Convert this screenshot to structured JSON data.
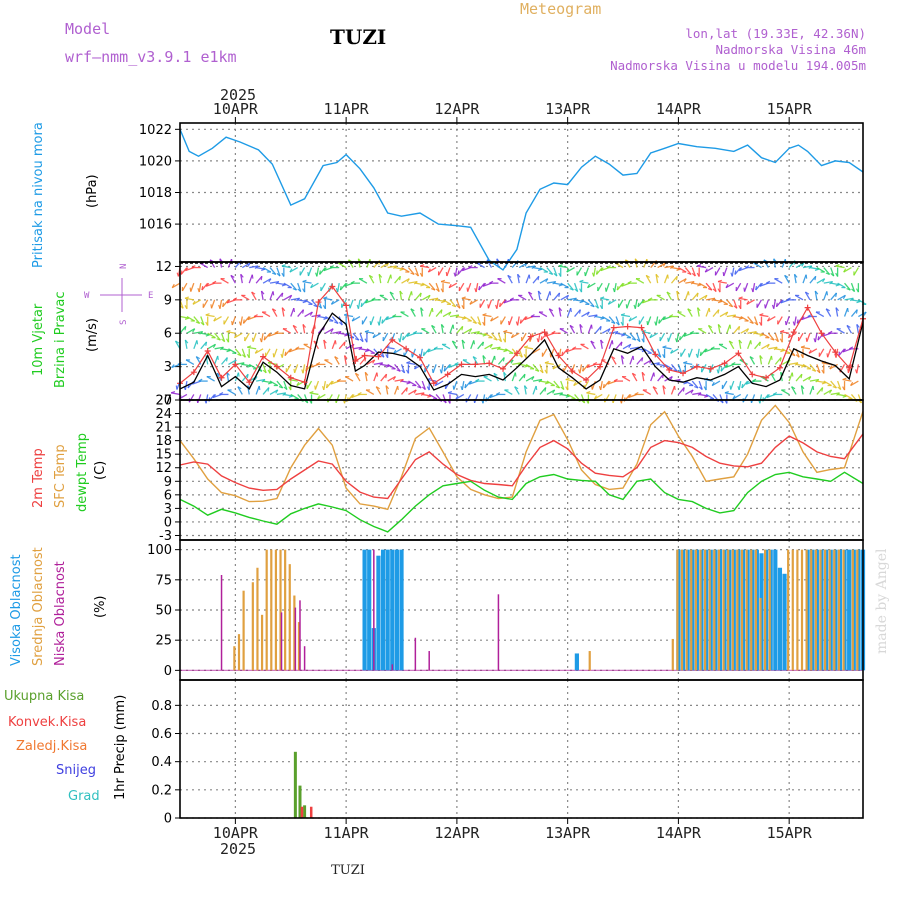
{
  "header": {
    "model_label": "Model",
    "model_name": "wrf—nmm_v3.9.1  e1km",
    "station": "TUZI",
    "product": "Meteogram",
    "coords": "lon,lat (19.33E, 42.36N)",
    "elevation": "Nadmorska Visina 46m",
    "model_elevation": "Nadmorska Visina u modelu 194.005m",
    "watermark": "made by Angel",
    "footer_station": "TUZI"
  },
  "colors": {
    "pressure": "#1e9be6",
    "t2m": "#ee4040",
    "tsfc": "#e0a040",
    "dewpt": "#20cc20",
    "high_cloud": "#1e9be6",
    "mid_cloud": "#e0a040",
    "low_cloud": "#b0209a",
    "total_precip": "#5aa02c",
    "conv_precip": "#ee4040",
    "frz_precip": "#f07830",
    "snow": "#4040e0",
    "hail": "#30c0c0",
    "wind_speed": "#000000",
    "wind_gust": "#ee4040"
  },
  "xaxis": {
    "top_year": "2025",
    "bottom_year": "2025",
    "day_labels": [
      "10APR",
      "11APR",
      "12APR",
      "13APR",
      "14APR",
      "15APR"
    ],
    "day_offsets_h": [
      12,
      36,
      60,
      84,
      108,
      132
    ],
    "range_h": [
      0,
      148
    ]
  },
  "panels": {
    "pressure": {
      "label": "Pritisak na nivou mora",
      "unit": "(hPa)",
      "ylim": [
        1013.6,
        1022.4
      ],
      "ticks": [
        "1016",
        "1018",
        "1020",
        "1022"
      ]
    },
    "wind": {
      "label1": "10m Vjetar",
      "label2": "Brzina i Pravac",
      "unit": "(m/s)",
      "compass": {
        "n": "N",
        "s": "S",
        "e": "E",
        "w": "W"
      },
      "ylim": [
        0,
        12.4
      ],
      "ticks": [
        "0",
        "3",
        "6",
        "9",
        "12"
      ]
    },
    "temp": {
      "label1": "2m Temp",
      "label2": "SFC Temp",
      "label3": "dewpt Temp",
      "unit": "(C)",
      "ylim": [
        -4,
        27
      ],
      "ticks": [
        "-3",
        "0",
        "3",
        "6",
        "9",
        "12",
        "15",
        "18",
        "21",
        "24",
        "27"
      ]
    },
    "cloud": {
      "label1": "Visoka Oblacnost",
      "label2": "Srednja Oblacnost",
      "label3": "Niska Oblacnost",
      "unit": "(%)",
      "ylim": [
        -8,
        108
      ],
      "ticks": [
        "0",
        "25",
        "50",
        "75",
        "100"
      ]
    },
    "precip": {
      "labels": [
        "Ukupna  Kisa",
        "Konvek.Kisa",
        "Zaledj.Kisa",
        "Snijeg",
        "Grad"
      ],
      "unit": "1hr Precip (mm)",
      "ylim": [
        0,
        0.98
      ],
      "ticks": [
        "0",
        "0.2",
        "0.4",
        "0.6",
        "0.8"
      ]
    }
  },
  "chart_data": {
    "type": "line",
    "x_unit": "hours from 2025-04-10 00UTC",
    "pressure_series": {
      "x": [
        0,
        2,
        4,
        7,
        10,
        13,
        17,
        20,
        24,
        27,
        31,
        34,
        36,
        39,
        42,
        45,
        48,
        52,
        56,
        60,
        63,
        67,
        70,
        73,
        75,
        78,
        81,
        84,
        87,
        90,
        93,
        96,
        99,
        102,
        105,
        108,
        112,
        116,
        120,
        123,
        126,
        129,
        132,
        134,
        136,
        139,
        142,
        145,
        148
      ],
      "values": [
        1022.0,
        1020.6,
        1020.3,
        1020.8,
        1021.5,
        1021.2,
        1020.7,
        1019.8,
        1017.2,
        1017.6,
        1019.7,
        1019.9,
        1020.4,
        1019.5,
        1018.3,
        1016.7,
        1016.5,
        1016.7,
        1016.0,
        1015.9,
        1015.8,
        1013.7,
        1013.1,
        1014.4,
        1016.7,
        1018.2,
        1018.6,
        1018.5,
        1019.6,
        1020.3,
        1019.8,
        1019.1,
        1019.2,
        1020.5,
        1020.8,
        1021.1,
        1020.9,
        1020.8,
        1020.6,
        1021.0,
        1020.2,
        1019.9,
        1020.8,
        1021.0,
        1020.6,
        1019.7,
        1020.0,
        1019.9,
        1019.3
      ]
    },
    "wind_speed_series": {
      "x": [
        0,
        3,
        6,
        9,
        12,
        15,
        18,
        21,
        24,
        27,
        30,
        33,
        36,
        38,
        40,
        43,
        46,
        49,
        52,
        55,
        58,
        61,
        64,
        67,
        70,
        73,
        76,
        79,
        82,
        85,
        88,
        91,
        94,
        97,
        100,
        103,
        106,
        109,
        112,
        115,
        118,
        121,
        124,
        127,
        130,
        133,
        136,
        139,
        142,
        145,
        148
      ],
      "values": [
        1.0,
        1.6,
        4.0,
        1.2,
        2.1,
        1.0,
        3.4,
        2.5,
        1.3,
        1.0,
        5.8,
        7.8,
        6.8,
        2.6,
        3.1,
        4.3,
        4.2,
        3.9,
        3.0,
        0.9,
        1.4,
        2.3,
        2.1,
        2.3,
        1.8,
        2.9,
        4.1,
        5.4,
        2.9,
        2.0,
        1.0,
        1.8,
        4.6,
        4.2,
        4.8,
        3.0,
        1.8,
        1.6,
        2.0,
        1.8,
        2.3,
        3.0,
        1.5,
        1.2,
        1.8,
        4.6,
        4.0,
        3.5,
        3.1,
        1.9,
        7.0
      ]
    },
    "wind_gust_series": {
      "x": [
        0,
        3,
        6,
        9,
        12,
        15,
        18,
        21,
        24,
        27,
        30,
        33,
        36,
        38,
        40,
        43,
        46,
        49,
        52,
        55,
        58,
        61,
        64,
        67,
        70,
        73,
        76,
        79,
        82,
        85,
        88,
        91,
        94,
        97,
        100,
        103,
        106,
        109,
        112,
        115,
        118,
        121,
        124,
        127,
        130,
        133,
        136,
        139,
        142,
        145,
        148
      ],
      "values": [
        1.5,
        2.5,
        4.4,
        2.0,
        3.2,
        1.6,
        3.9,
        3.0,
        2.0,
        1.6,
        8.8,
        10.2,
        8.5,
        3.5,
        4.0,
        3.9,
        5.4,
        4.6,
        3.8,
        1.5,
        2.3,
        3.2,
        3.2,
        3.3,
        2.8,
        4.2,
        5.7,
        6.1,
        4.0,
        2.6,
        1.8,
        3.0,
        6.5,
        6.6,
        6.5,
        4.1,
        2.7,
        2.4,
        3.0,
        2.8,
        3.3,
        4.2,
        2.3,
        2.0,
        2.9,
        6.1,
        8.3,
        6.0,
        4.3,
        2.9,
        7.3
      ]
    },
    "t2m_series": {
      "x": [
        0,
        3,
        6,
        9,
        12,
        15,
        18,
        21,
        24,
        27,
        30,
        33,
        36,
        39,
        42,
        45,
        48,
        51,
        54,
        57,
        60,
        63,
        66,
        69,
        72,
        75,
        78,
        81,
        84,
        87,
        90,
        93,
        96,
        99,
        102,
        105,
        108,
        111,
        114,
        117,
        120,
        123,
        126,
        129,
        132,
        135,
        138,
        141,
        144,
        148
      ],
      "values": [
        12.6,
        13.3,
        12.8,
        10.2,
        8.7,
        7.5,
        7.0,
        7.2,
        9.5,
        11.5,
        13.5,
        12.8,
        9.0,
        6.6,
        5.5,
        5.2,
        9.5,
        13.8,
        15.5,
        12.8,
        10.5,
        9.2,
        8.5,
        8.3,
        8.0,
        12.5,
        16.5,
        18.0,
        16.2,
        13.0,
        10.8,
        10.3,
        10.0,
        12.0,
        16.5,
        18.0,
        17.6,
        16.5,
        14.5,
        13.0,
        12.4,
        12.2,
        13.0,
        16.5,
        19.0,
        17.5,
        15.5,
        14.5,
        14.0,
        19.5
      ]
    },
    "tsfc_series": {
      "x": [
        0,
        3,
        6,
        9,
        12,
        15,
        18,
        21,
        24,
        27,
        30,
        33,
        36,
        39,
        42,
        45,
        48,
        51,
        54,
        57,
        60,
        63,
        66,
        69,
        72,
        75,
        78,
        81,
        84,
        87,
        90,
        93,
        96,
        99,
        102,
        105,
        108,
        111,
        114,
        117,
        120,
        123,
        126,
        129,
        132,
        135,
        138,
        141,
        144,
        148
      ],
      "values": [
        18.0,
        14.0,
        9.5,
        6.5,
        5.8,
        4.5,
        4.6,
        5.2,
        12.0,
        17.0,
        20.7,
        17.0,
        7.5,
        4.0,
        3.5,
        2.8,
        10.0,
        18.5,
        20.8,
        15.5,
        10.0,
        7.2,
        6.0,
        5.2,
        5.5,
        15.5,
        22.5,
        23.8,
        18.2,
        11.5,
        8.3,
        7.2,
        7.5,
        12.8,
        21.5,
        24.4,
        19.0,
        14.5,
        9.0,
        9.5,
        10.0,
        15.0,
        22.5,
        25.8,
        22.0,
        15.5,
        11.0,
        11.6,
        12.0,
        24.5
      ]
    },
    "dewpt_series": {
      "x": [
        0,
        3,
        6,
        9,
        12,
        15,
        18,
        21,
        24,
        27,
        30,
        33,
        36,
        39,
        42,
        45,
        48,
        51,
        54,
        57,
        60,
        63,
        66,
        69,
        72,
        75,
        78,
        81,
        84,
        87,
        90,
        93,
        96,
        99,
        102,
        105,
        108,
        111,
        114,
        117,
        120,
        123,
        126,
        129,
        132,
        135,
        138,
        141,
        144,
        148
      ],
      "values": [
        5.0,
        3.5,
        1.5,
        2.8,
        2.0,
        1.0,
        0.2,
        -0.5,
        1.8,
        3.0,
        4.0,
        3.3,
        2.5,
        0.5,
        -1.0,
        -2.2,
        0.5,
        3.5,
        6.0,
        8.0,
        8.5,
        9.0,
        7.0,
        5.5,
        5.0,
        8.5,
        10.0,
        10.5,
        9.5,
        9.2,
        9.0,
        6.0,
        5.0,
        9.0,
        9.5,
        6.5,
        5.0,
        4.5,
        3.0,
        2.0,
        2.5,
        6.5,
        9.0,
        10.5,
        11.0,
        10.0,
        9.5,
        9.0,
        11.0,
        8.5
      ]
    },
    "high_cloud": {
      "x": [
        0,
        40,
        41,
        42,
        43,
        44,
        45,
        46,
        47,
        48,
        86,
        107,
        108,
        109,
        110,
        111,
        112,
        113,
        114,
        115,
        116,
        117,
        118,
        119,
        120,
        121,
        122,
        123,
        124,
        125,
        126,
        127,
        128,
        129,
        130,
        131,
        132,
        133,
        134,
        135,
        136,
        137,
        138,
        139,
        140,
        141,
        142,
        143,
        144,
        145,
        146,
        147,
        148
      ],
      "values": [
        0,
        100,
        100,
        35,
        95,
        100,
        100,
        100,
        100,
        100,
        14,
        0,
        100,
        100,
        100,
        100,
        100,
        100,
        100,
        100,
        100,
        100,
        100,
        100,
        100,
        100,
        100,
        100,
        100,
        100,
        97,
        100,
        100,
        100,
        85,
        80,
        0,
        0,
        0,
        0,
        100,
        100,
        100,
        100,
        100,
        100,
        100,
        100,
        100,
        100,
        100,
        100,
        100
      ]
    },
    "mid_cloud": {
      "x": [
        8,
        9,
        10,
        11,
        12,
        13,
        14,
        15,
        16,
        17,
        18,
        19,
        20,
        21,
        22,
        23,
        24,
        25,
        26,
        89,
        107,
        108,
        109,
        110,
        111,
        112,
        113,
        114,
        115,
        116,
        117,
        118,
        119,
        120,
        121,
        122,
        123,
        124,
        125,
        126,
        127,
        128,
        129,
        130,
        131,
        132,
        133,
        134,
        135,
        136,
        137,
        138,
        139,
        140,
        141,
        142,
        143,
        144,
        145,
        146,
        147
      ],
      "values": [
        0,
        0,
        0,
        0,
        20,
        30,
        66,
        0,
        73,
        85,
        46,
        100,
        100,
        100,
        100,
        100,
        88,
        62,
        40,
        16,
        26,
        100,
        100,
        100,
        100,
        100,
        100,
        100,
        100,
        100,
        100,
        100,
        100,
        100,
        100,
        100,
        100,
        100,
        100,
        60,
        100,
        100,
        0,
        0,
        0,
        100,
        100,
        100,
        100,
        100,
        100,
        100,
        100,
        100,
        100,
        100,
        100,
        100,
        0,
        100,
        100
      ]
    },
    "low_cloud": {
      "x": [
        9,
        22,
        25,
        26,
        27,
        42,
        46,
        51,
        54,
        69
      ],
      "values": [
        79,
        48,
        52,
        58,
        20,
        100,
        5,
        27,
        16,
        63
      ]
    },
    "precip_total": {
      "x": [
        25,
        26,
        27
      ],
      "values": [
        0.47,
        0.23,
        0.09
      ]
    },
    "precip_conv": {
      "x": [
        26,
        28
      ],
      "values": [
        0.08,
        0.08
      ]
    },
    "wind_barbs": {
      "note": "direction in degrees (meteorological, from) per time step and level band",
      "dirs": [
        280,
        240,
        210,
        200,
        190,
        220,
        250,
        270,
        300,
        330,
        350,
        20,
        40,
        60,
        80,
        100,
        120,
        140,
        160,
        180
      ]
    }
  }
}
